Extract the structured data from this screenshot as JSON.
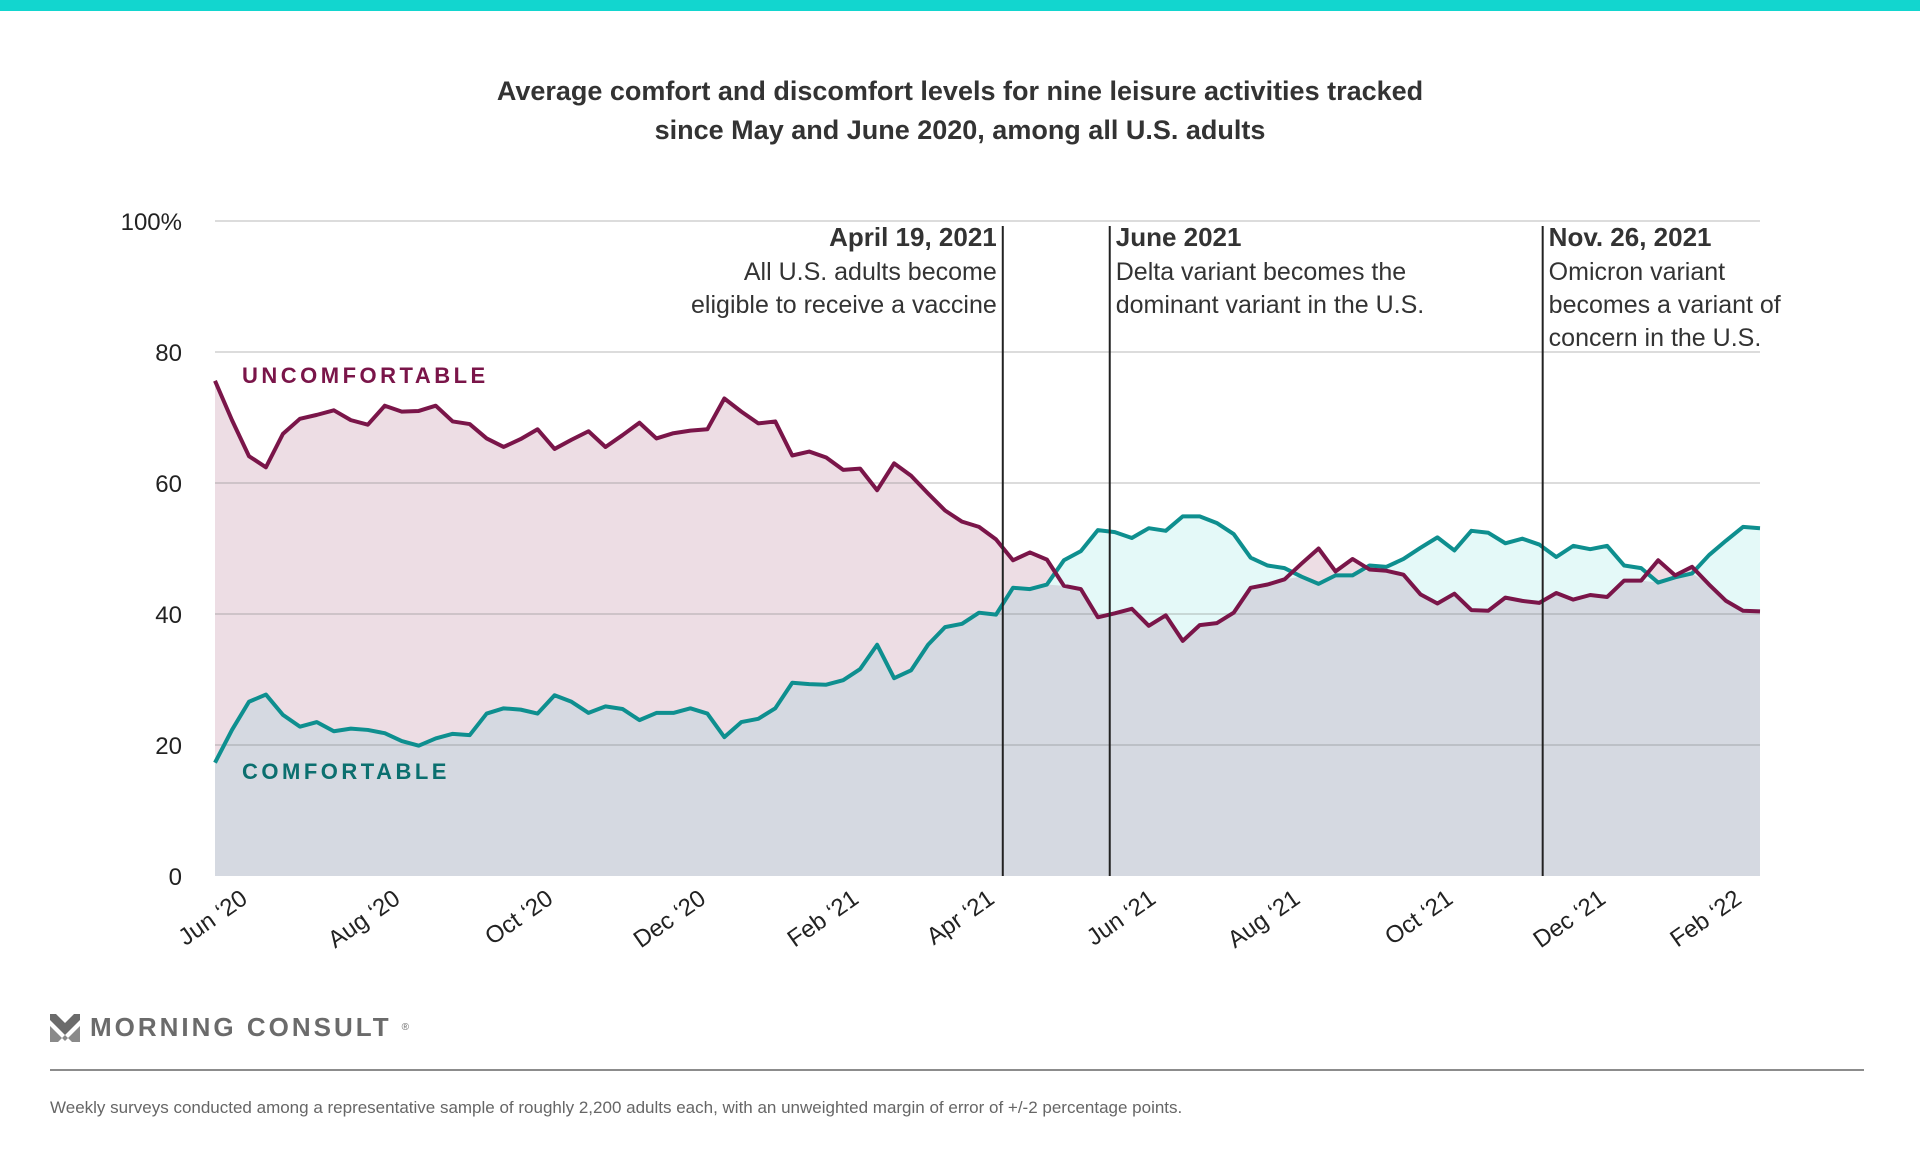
{
  "header": {
    "title_line1": "Average comfort and discomfort levels for nine leisure activities tracked",
    "title_line2": "since May and June 2020, among all U.S. adults"
  },
  "colors": {
    "accent_bar": "#12d6cf",
    "uncomfortable_line": "#7a1549",
    "uncomfortable_fill": "#eddde4",
    "comfortable_line": "#0e8f8f",
    "comfortable_fill_above": "#e4f9f8",
    "overlap_fill": "#d5d9e1",
    "comfortable_label": "#0b6f6f"
  },
  "chart_data": {
    "type": "area",
    "title": "Average comfort and discomfort levels for nine leisure activities tracked since May and June 2020, among all U.S. adults",
    "xlabel": "",
    "ylabel": "",
    "ylim": [
      0,
      100
    ],
    "y_ticks": [
      "0",
      "20",
      "40",
      "60",
      "80",
      "100%"
    ],
    "y_tick_values": [
      0,
      20,
      40,
      60,
      80,
      100
    ],
    "grid": true,
    "x_range_weeks": [
      0,
      91
    ],
    "x_ticks": [
      {
        "label": "Jun ‘20",
        "week": 2
      },
      {
        "label": "Aug ‘20",
        "week": 11
      },
      {
        "label": "Oct ‘20",
        "week": 20
      },
      {
        "label": "Dec ‘20",
        "week": 29
      },
      {
        "label": "Feb ‘21",
        "week": 38
      },
      {
        "label": "Apr ‘21",
        "week": 46
      },
      {
        "label": "Jun ‘21",
        "week": 55.5
      },
      {
        "label": "Aug ‘21",
        "week": 64
      },
      {
        "label": "Oct ‘21",
        "week": 73
      },
      {
        "label": "Dec ‘21",
        "week": 82
      },
      {
        "label": "Feb ‘22",
        "week": 90
      }
    ],
    "series": [
      {
        "name": "UNCOMFORTABLE",
        "values": [
          75.6,
          69.6,
          64.1,
          62.4,
          67.5,
          69.8,
          70.4,
          71.1,
          69.6,
          68.9,
          71.8,
          70.9,
          71.0,
          71.8,
          69.4,
          69.0,
          66.8,
          65.5,
          66.7,
          68.2,
          65.2,
          66.6,
          67.9,
          65.5,
          67.3,
          69.2,
          66.8,
          67.6,
          68.0,
          68.2,
          72.9,
          70.9,
          69.1,
          69.4,
          64.2,
          64.8,
          63.9,
          62.0,
          62.2,
          58.9,
          63.0,
          61.1,
          58.4,
          55.8,
          54.1,
          53.3,
          51.4,
          48.2,
          49.4,
          48.3,
          44.3,
          43.8,
          39.5,
          40.1,
          40.8,
          38.2,
          39.8,
          35.9,
          38.3,
          38.6,
          40.2,
          44.0,
          44.5,
          45.3,
          47.7,
          50.0,
          46.5,
          48.4,
          46.8,
          46.6,
          46.0,
          43.0,
          41.6,
          43.1,
          40.6,
          40.5,
          42.5,
          42.0,
          41.7,
          43.2,
          42.2,
          42.9,
          42.6,
          45.1,
          45.1,
          48.2,
          45.9,
          47.2,
          44.5,
          42.0,
          40.5,
          40.4
        ]
      },
      {
        "name": "COMFORTABLE",
        "values": [
          17.3,
          22.3,
          26.6,
          27.7,
          24.6,
          22.8,
          23.5,
          22.1,
          22.5,
          22.3,
          21.8,
          20.6,
          19.9,
          21.0,
          21.7,
          21.5,
          24.8,
          25.6,
          25.4,
          24.8,
          27.6,
          26.6,
          24.9,
          25.9,
          25.5,
          23.8,
          24.9,
          24.9,
          25.6,
          24.8,
          21.2,
          23.5,
          24.0,
          25.6,
          29.5,
          29.3,
          29.2,
          29.9,
          31.6,
          35.3,
          30.2,
          31.4,
          35.3,
          38.0,
          38.5,
          40.2,
          39.9,
          44.0,
          43.8,
          44.5,
          48.2,
          49.6,
          52.8,
          52.5,
          51.6,
          53.1,
          52.7,
          54.9,
          54.9,
          53.9,
          52.2,
          48.6,
          47.4,
          47.0,
          45.7,
          44.6,
          45.9,
          45.9,
          47.4,
          47.2,
          48.4,
          50.1,
          51.7,
          49.7,
          52.7,
          52.4,
          50.8,
          51.5,
          50.6,
          48.7,
          50.4,
          49.9,
          50.4,
          47.4,
          47.0,
          44.8,
          45.6,
          46.2,
          49.0,
          51.2,
          53.3,
          53.1
        ]
      }
    ],
    "legend": [
      {
        "label": "UNCOMFORTABLE",
        "placement": "top-left"
      },
      {
        "label": "COMFORTABLE",
        "placement": "bottom-left"
      }
    ],
    "annotations": [
      {
        "week": 46.4,
        "align": "left-of-line",
        "heading": "April 19, 2021",
        "lines": [
          "All U.S. adults become",
          "eligible to receive a vaccine"
        ]
      },
      {
        "week": 52.7,
        "align": "right-of-line",
        "heading": "June 2021",
        "lines": [
          "Delta variant becomes the",
          "dominant variant in the U.S."
        ]
      },
      {
        "week": 78.2,
        "align": "right-of-line",
        "heading": "Nov. 26, 2021",
        "lines": [
          "Omicron variant",
          "becomes a variant of",
          "concern in the U.S."
        ]
      }
    ]
  },
  "footer": {
    "logo_text": "MORNING CONSULT",
    "logo_mark": "®",
    "footnote": "Weekly surveys conducted among a representative sample of roughly 2,200 adults each, with an unweighted margin of error of +/-2 percentage points."
  }
}
